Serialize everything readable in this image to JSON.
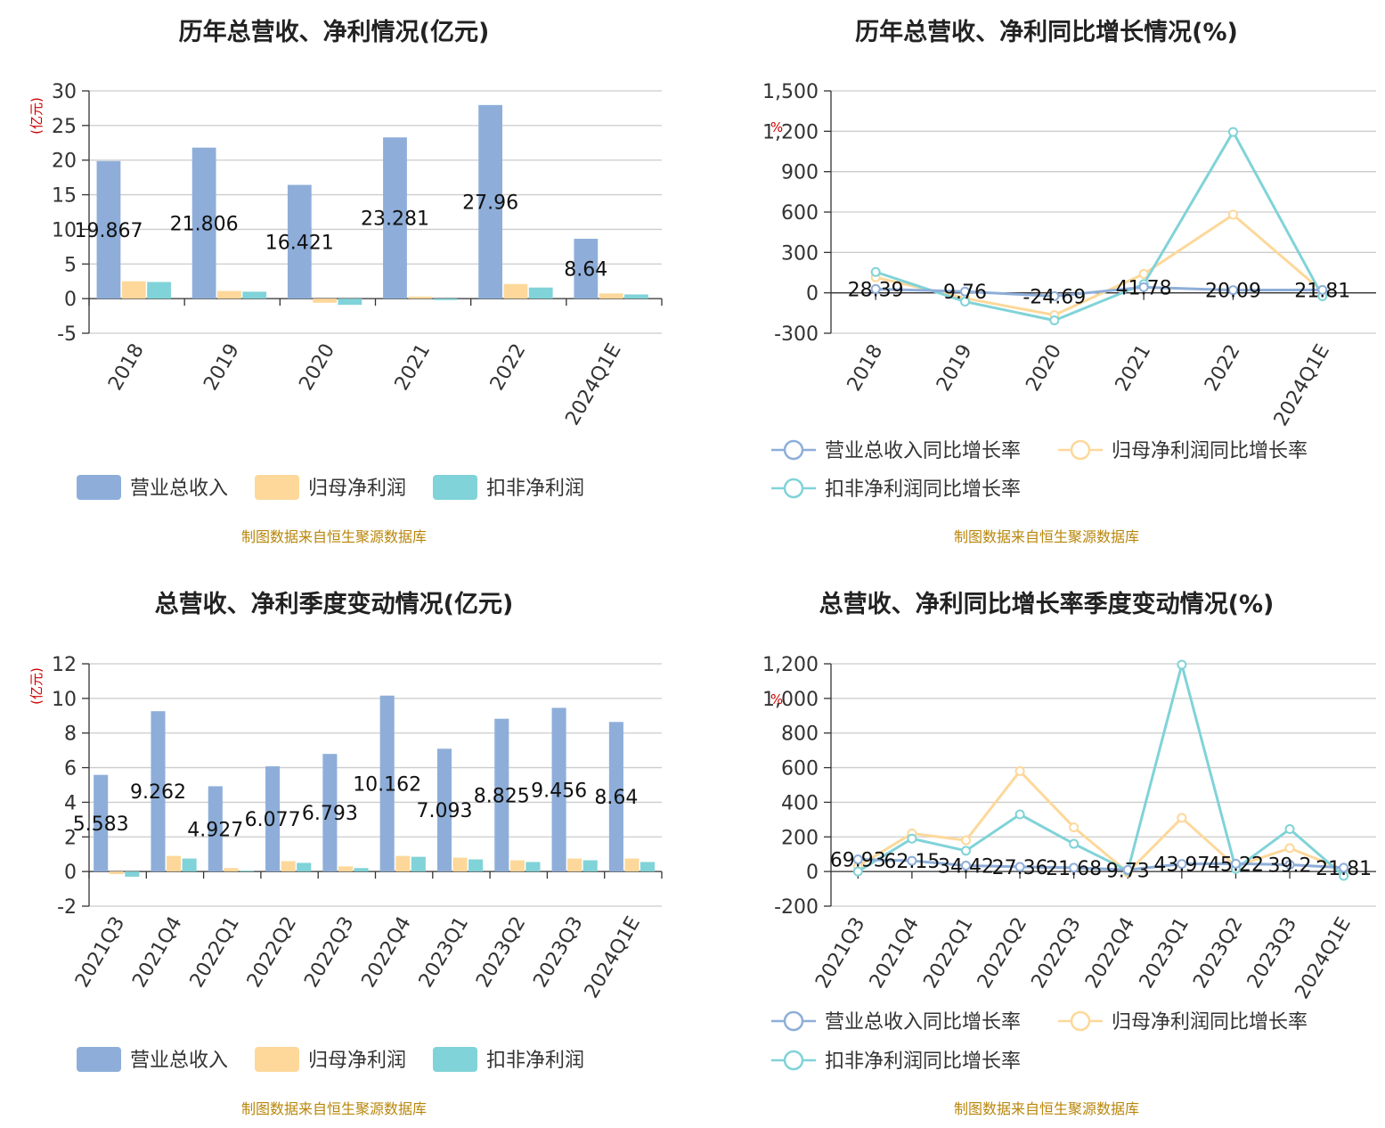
{
  "colors": {
    "revenue": "#8eaed9",
    "profit": "#fdd89a",
    "deducted": "#80d3d8",
    "source": "#b8860b",
    "unit": "#cc0000"
  },
  "source_text": "制图数据来自恒生聚源数据库",
  "chart_data": [
    {
      "type": "bar",
      "title": "历年总营收、净利情况(亿元)",
      "unit": "(亿元)",
      "categories": [
        "2018",
        "2019",
        "2020",
        "2021",
        "2022",
        "2024Q1E"
      ],
      "ylim": [
        -5,
        30
      ],
      "yticks": [
        -5,
        0,
        5,
        10,
        15,
        20,
        25,
        30
      ],
      "legend_position": "bottom",
      "series": [
        {
          "name": "营业总收入",
          "values": [
            19.867,
            21.806,
            16.421,
            23.281,
            27.96,
            8.64
          ],
          "labels": [
            "19.867",
            "21.806",
            "16.421",
            "23.281",
            "27.96",
            "8.64"
          ]
        },
        {
          "name": "归母净利润",
          "values": [
            2.5,
            1.1,
            -0.6,
            0.3,
            2.1,
            0.75
          ]
        },
        {
          "name": "扣非净利润",
          "values": [
            2.4,
            1.0,
            -0.9,
            -0.2,
            1.6,
            0.6
          ]
        }
      ]
    },
    {
      "type": "line",
      "title": "历年总营收、净利同比增长情况(%)",
      "unit": "%",
      "categories": [
        "2018",
        "2019",
        "2020",
        "2021",
        "2022",
        "2024Q1E"
      ],
      "ylim": [
        -300,
        1500
      ],
      "yticks": [
        -300,
        0,
        300,
        600,
        900,
        1200,
        1500
      ],
      "ytick_labels": [
        "-300",
        "0",
        "300",
        "600",
        "900",
        "1,200",
        "1,500"
      ],
      "legend_position": "bottom",
      "series": [
        {
          "name": "营业总收入同比增长率",
          "values": [
            28.39,
            9.76,
            -24.69,
            41.78,
            20.09,
            21.81
          ],
          "labels": [
            "28.39",
            "9.76",
            "-24.69",
            "41.78",
            "20.09",
            "21.81"
          ]
        },
        {
          "name": "归母净利润同比增长率",
          "values": [
            115,
            -40,
            -165,
            140,
            580,
            10
          ]
        },
        {
          "name": "扣非净利润同比增长率",
          "values": [
            155,
            -65,
            -205,
            65,
            1195,
            -25
          ]
        }
      ]
    },
    {
      "type": "bar",
      "title": "总营收、净利季度变动情况(亿元)",
      "unit": "(亿元)",
      "categories": [
        "2021Q3",
        "2021Q4",
        "2022Q1",
        "2022Q2",
        "2022Q3",
        "2022Q4",
        "2023Q1",
        "2023Q2",
        "2023Q3",
        "2024Q1E"
      ],
      "ylim": [
        -2,
        12
      ],
      "yticks": [
        -2,
        0,
        2,
        4,
        6,
        8,
        10,
        12
      ],
      "legend_position": "bottom",
      "series": [
        {
          "name": "营业总收入",
          "values": [
            5.583,
            9.262,
            4.927,
            6.077,
            6.793,
            10.162,
            7.093,
            8.825,
            9.456,
            8.64
          ],
          "labels": [
            "5.583",
            "9.262",
            "4.927",
            "6.077",
            "6.793",
            "10.162",
            "7.093",
            "8.825",
            "9.456",
            "8.64"
          ]
        },
        {
          "name": "归母净利润",
          "values": [
            -0.15,
            0.9,
            0.2,
            0.6,
            0.3,
            0.9,
            0.8,
            0.65,
            0.75,
            0.75
          ]
        },
        {
          "name": "扣非净利润",
          "values": [
            -0.3,
            0.75,
            0.05,
            0.5,
            0.2,
            0.85,
            0.7,
            0.55,
            0.65,
            0.55
          ]
        }
      ]
    },
    {
      "type": "line",
      "title": "总营收、净利同比增长率季度变动情况(%)",
      "unit": "%",
      "categories": [
        "2021Q3",
        "2021Q4",
        "2022Q1",
        "2022Q2",
        "2022Q3",
        "2022Q4",
        "2023Q1",
        "2023Q2",
        "2023Q3",
        "2024Q1E"
      ],
      "ylim": [
        -200,
        1200
      ],
      "yticks": [
        -200,
        0,
        200,
        400,
        600,
        800,
        1000,
        1200
      ],
      "ytick_labels": [
        "-200",
        "0",
        "200",
        "400",
        "600",
        "800",
        "1,000",
        "1,200"
      ],
      "legend_position": "bottom",
      "series": [
        {
          "name": "营业总收入同比增长率",
          "values": [
            69.93,
            62.15,
            34.42,
            27.36,
            21.68,
            9.73,
            43.97,
            45.22,
            39.2,
            21.81
          ],
          "labels": [
            "69.93",
            "62.15",
            "34.42",
            "27.36",
            "21.68",
            "9.73",
            "43.97",
            "45.22",
            "39.2",
            "21.81"
          ]
        },
        {
          "name": "归母净利润同比增长率",
          "values": [
            30,
            220,
            180,
            580,
            255,
            -5,
            310,
            30,
            135,
            10
          ]
        },
        {
          "name": "扣非净利润同比增长率",
          "values": [
            0,
            190,
            120,
            330,
            160,
            5,
            1195,
            15,
            245,
            -25
          ]
        }
      ]
    }
  ]
}
